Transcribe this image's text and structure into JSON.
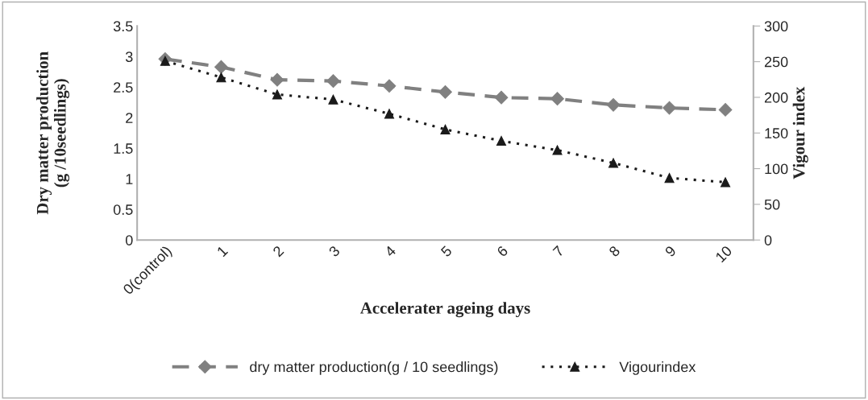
{
  "chart_data": {
    "type": "line",
    "categories": [
      "0(control)",
      "1",
      "2",
      "3",
      "4",
      "5",
      "6",
      "7",
      "8",
      "9",
      "10"
    ],
    "xlabel": "Accelerater ageing days",
    "ylabel": "Dry matter production\n(g /10seedlings)",
    "y2label": "Vigour index",
    "series": [
      {
        "name": "dry matter production(g / 10 seedlings)",
        "color": "#808080",
        "marker": "diamond",
        "line_style": "dashed",
        "values": [
          2.96,
          2.83,
          2.62,
          2.6,
          2.52,
          2.42,
          2.33,
          2.31,
          2.21,
          2.16,
          2.13
        ]
      },
      {
        "name": "Vigourindex",
        "color": "#1a1a1a",
        "marker": "triangle",
        "line_style": "dotted",
        "axis": "y2",
        "values": [
          251,
          228,
          204,
          197,
          177,
          155,
          139,
          126,
          108,
          87,
          81
        ]
      }
    ],
    "ylim": [
      0,
      3.5
    ],
    "yticks": [
      0,
      0.5,
      1,
      1.5,
      2,
      2.5,
      3,
      3.5
    ],
    "y2lim": [
      0,
      300
    ],
    "y2ticks": [
      0,
      50,
      100,
      150,
      200,
      250,
      300
    ],
    "grid": false,
    "legend": "bottom"
  }
}
